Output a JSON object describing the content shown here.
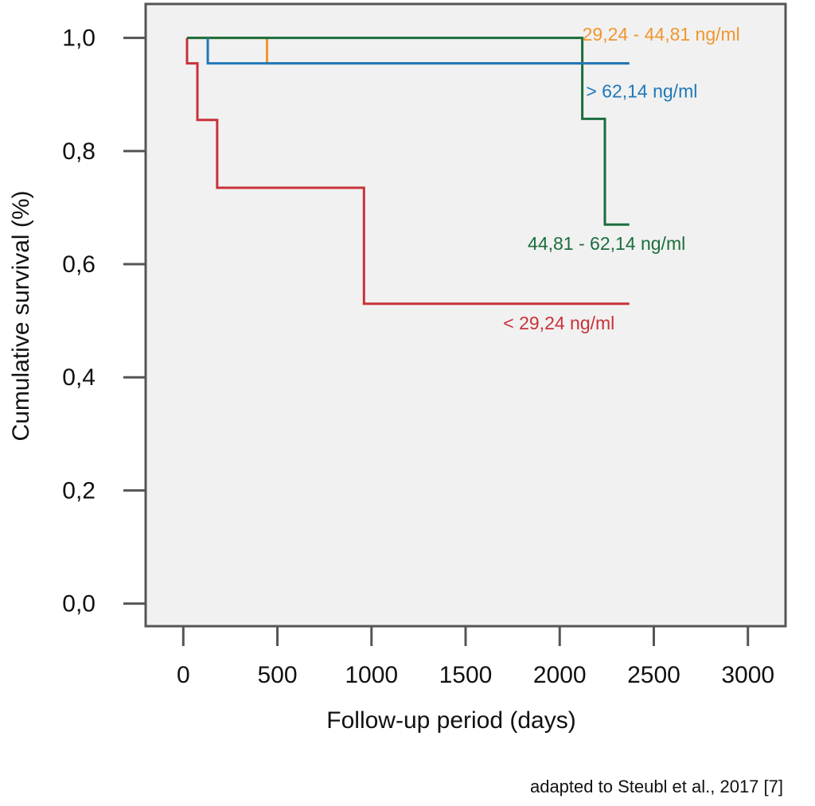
{
  "chart_data": {
    "type": "line",
    "step": true,
    "xlabel": "Follow-up period (days)",
    "ylabel": "Cumulative survival (%)",
    "xlim": [
      -200,
      3200
    ],
    "ylim": [
      -0.04,
      1.06
    ],
    "x_ticks": [
      0,
      500,
      1000,
      1500,
      2000,
      2500,
      3000
    ],
    "x_tick_labels": [
      "0",
      "500",
      "1000",
      "1500",
      "2000",
      "2500",
      "3000"
    ],
    "y_ticks": [
      0.0,
      0.2,
      0.4,
      0.6,
      0.8,
      1.0
    ],
    "y_tick_labels": [
      "0,0",
      "0,2",
      "0,4",
      "0,6",
      "0,8",
      "1,0"
    ],
    "grid": false,
    "background": "#f1f1f1",
    "series": [
      {
        "name": "< 29,24 ng/ml",
        "color": "#c8323a",
        "x": [
          20,
          20,
          75,
          75,
          180,
          180,
          960,
          960,
          2370
        ],
        "y": [
          1.0,
          0.955,
          0.955,
          0.855,
          0.855,
          0.735,
          0.735,
          0.53,
          0.53
        ]
      },
      {
        "name": "29,24 - 44,81 ng/ml",
        "color": "#f0962d",
        "x": [
          20,
          445,
          445,
          2370
        ],
        "y": [
          1.0,
          1.0,
          0.955,
          0.955
        ]
      },
      {
        "name": "44,81 - 62,14 ng/ml",
        "color": "#1a6e3c",
        "x": [
          20,
          2120,
          2120,
          2240,
          2240,
          2370
        ],
        "y": [
          1.0,
          1.0,
          0.857,
          0.857,
          0.67,
          0.67
        ]
      },
      {
        "name": "> 62,14 ng/ml",
        "color": "#1f78b8",
        "x": [
          130,
          130,
          2370
        ],
        "y": [
          1.0,
          0.955,
          0.955
        ]
      }
    ],
    "annotations": [
      {
        "text": "29,24 - 44,81 ng/ml",
        "series": 1,
        "at_x": 2120,
        "at_y": 0.995
      },
      {
        "text": "> 62,14 ng/ml",
        "series": 3,
        "at_x": 2140,
        "at_y": 0.895
      },
      {
        "text": "44,81 - 62,14 ng/ml",
        "series": 2,
        "at_x": 1830,
        "at_y": 0.625
      },
      {
        "text": "< 29,24 ng/ml",
        "series": 0,
        "at_x": 1700,
        "at_y": 0.485
      }
    ]
  },
  "source_note": "adapted to Steubl et al., 2017 [7]"
}
